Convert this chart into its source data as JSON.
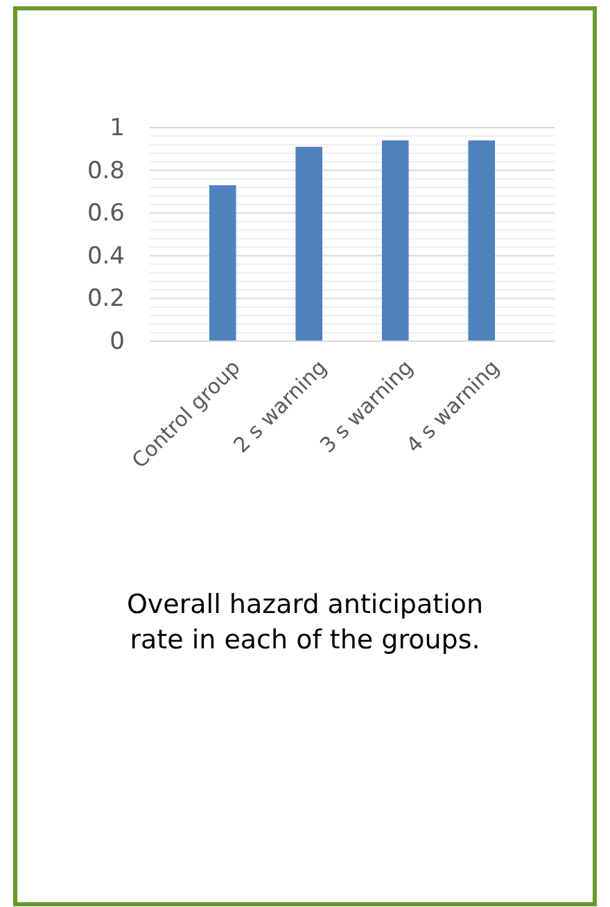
{
  "chart_data": {
    "type": "bar",
    "title": "Overall hazard anticipation rate in each of the groups.",
    "categories": [
      "Control group",
      "2 s warning",
      "3 s warning",
      "4 s warning"
    ],
    "values": [
      0.73,
      0.91,
      0.94,
      0.94
    ],
    "color": "#4f81bd",
    "ylim": [
      0,
      1
    ],
    "yticks": [
      0,
      {
        "value": 0.04,
        "label": null
      },
      {
        "value": 0.08,
        "label": null
      },
      {
        "value": 0.12,
        "label": null
      },
      {
        "value": 0.16,
        "label": null
      },
      {
        "value": 0.2,
        "label": "0.2"
      },
      {
        "value": 0.24,
        "label": null
      },
      {
        "value": 0.28,
        "label": null
      },
      {
        "value": 0.32,
        "label": null
      },
      {
        "value": 0.36,
        "label": null
      },
      {
        "value": 0.4,
        "label": "0.4"
      },
      {
        "value": 0.44,
        "label": null
      },
      {
        "value": 0.48,
        "label": null
      },
      {
        "value": 0.52,
        "label": null
      },
      {
        "value": 0.56,
        "label": null
      },
      {
        "value": 0.6,
        "label": "0.6"
      },
      {
        "value": 0.64,
        "label": null
      },
      {
        "value": 0.68,
        "label": null
      },
      {
        "value": 0.72,
        "label": null
      },
      {
        "value": 0.76,
        "label": null
      },
      {
        "value": 0.8,
        "label": "0.8"
      },
      {
        "value": 0.84,
        "label": null
      },
      {
        "value": 0.88,
        "label": null
      },
      {
        "value": 0.92,
        "label": null
      },
      {
        "value": 0.96,
        "label": null
      },
      1
    ],
    "grid": "y"
  }
}
